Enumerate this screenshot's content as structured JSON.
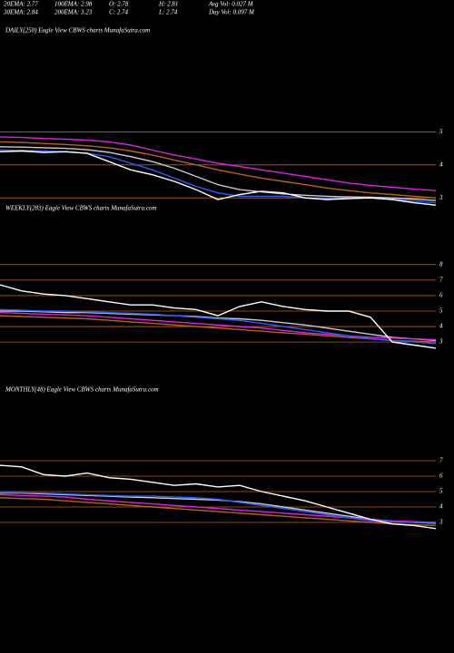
{
  "header": {
    "row1": [
      "20EMA: 2.77",
      "100EMA: 2.98",
      "O: 2.78",
      "H: 2.81",
      "Avg Vol: 0.027 M"
    ],
    "row2": [
      "30EMA: 2.84",
      "200EMA: 3.23",
      "C: 2.74",
      "L: 2.74",
      "Day Vol: 0.097 M"
    ]
  },
  "chart_data": [
    {
      "type": "line",
      "title": "DAILY(250) Eagle  View  CBWS charts MunafaSutra.com",
      "categories": [
        null,
        null,
        null,
        null,
        null,
        null,
        null,
        null,
        null,
        null,
        null,
        null,
        null,
        null,
        null,
        null,
        null,
        null,
        null,
        null,
        null
      ],
      "ylim": [
        2.4,
        5.15
      ],
      "yticks": [
        5,
        4,
        3
      ],
      "grid": true,
      "grid_color": "#b8621b",
      "series": [
        {
          "color": "#b8621b",
          "values": [
            4.7,
            4.68,
            4.65,
            4.62,
            4.58,
            4.52,
            4.42,
            4.3,
            4.15,
            4.0,
            3.85,
            3.72,
            3.6,
            3.5,
            3.4,
            3.3,
            3.22,
            3.15,
            3.1,
            3.05,
            3.0
          ]
        },
        {
          "color": "#cccccc",
          "values": [
            4.55,
            4.54,
            4.52,
            4.5,
            4.46,
            4.38,
            4.25,
            4.1,
            3.9,
            3.65,
            3.4,
            3.25,
            3.18,
            3.12,
            3.08,
            3.05,
            3.03,
            3.02,
            3.0,
            2.96,
            2.92
          ]
        },
        {
          "color": "#e020e0",
          "values": [
            4.85,
            4.83,
            4.8,
            4.78,
            4.75,
            4.7,
            4.6,
            4.45,
            4.3,
            4.18,
            4.05,
            3.95,
            3.85,
            3.75,
            3.65,
            3.55,
            3.45,
            3.38,
            3.32,
            3.27,
            3.22
          ]
        },
        {
          "color": "#2a5cff",
          "values": [
            4.45,
            4.44,
            4.42,
            4.4,
            4.35,
            4.25,
            4.05,
            3.85,
            3.6,
            3.35,
            3.15,
            3.05,
            3.05,
            3.05,
            3.0,
            2.98,
            2.98,
            3.0,
            2.96,
            2.9,
            2.85
          ]
        },
        {
          "color": "#ffffff",
          "values": [
            4.4,
            4.42,
            4.38,
            4.4,
            4.35,
            4.1,
            3.85,
            3.7,
            3.5,
            3.25,
            2.95,
            3.1,
            3.2,
            3.15,
            3.0,
            2.95,
            2.98,
            3.0,
            2.95,
            2.85,
            2.78
          ]
        }
      ]
    },
    {
      "type": "line",
      "title": "WEEKLY(283) Eagle  View  CBWS charts MunafaSutra.com",
      "categories": [
        null,
        null,
        null,
        null,
        null,
        null,
        null,
        null,
        null,
        null,
        null,
        null,
        null,
        null,
        null,
        null,
        null,
        null,
        null,
        null,
        null
      ],
      "ylim": [
        1.95,
        8.4
      ],
      "yticks": [
        8,
        7,
        6,
        5,
        4,
        3
      ],
      "grid": true,
      "grid_color": "#b8621b",
      "series": [
        {
          "color": "#b8621b",
          "values": [
            4.7,
            4.65,
            4.6,
            4.55,
            4.5,
            4.4,
            4.3,
            4.2,
            4.1,
            4.0,
            3.9,
            3.8,
            3.7,
            3.6,
            3.5,
            3.4,
            3.3,
            3.2,
            3.1,
            3.05,
            3.0
          ]
        },
        {
          "color": "#cccccc",
          "values": [
            5.0,
            5.0,
            4.95,
            4.9,
            4.9,
            4.85,
            4.8,
            4.75,
            4.7,
            4.65,
            4.55,
            4.5,
            4.4,
            4.25,
            4.1,
            3.9,
            3.7,
            3.5,
            3.3,
            3.2,
            3.1
          ]
        },
        {
          "color": "#e020e0",
          "values": [
            4.9,
            4.85,
            4.8,
            4.75,
            4.7,
            4.6,
            4.5,
            4.4,
            4.3,
            4.2,
            4.1,
            4.0,
            3.9,
            3.75,
            3.6,
            3.5,
            3.4,
            3.3,
            3.25,
            3.2,
            3.15
          ]
        },
        {
          "color": "#2a5cff",
          "values": [
            5.1,
            5.05,
            5.0,
            5.0,
            4.95,
            4.9,
            4.85,
            4.8,
            4.7,
            4.6,
            4.5,
            4.4,
            4.2,
            4.0,
            3.8,
            3.6,
            3.4,
            3.2,
            3.1,
            3.0,
            2.9
          ]
        },
        {
          "color": "#ffffff",
          "values": [
            6.7,
            6.3,
            6.1,
            6.0,
            5.8,
            5.6,
            5.4,
            5.4,
            5.2,
            5.1,
            4.7,
            5.3,
            5.6,
            5.3,
            5.1,
            5.0,
            5.0,
            4.6,
            3.0,
            2.8,
            2.6
          ]
        }
      ]
    },
    {
      "type": "line",
      "title": "MONTHLY(48) Eagle  View  CBWS charts MunafaSutra.com",
      "categories": [
        null,
        null,
        null,
        null,
        null,
        null,
        null,
        null,
        null,
        null,
        null,
        null,
        null,
        null,
        null,
        null,
        null,
        null,
        null,
        null,
        null
      ],
      "ylim": [
        1.59,
        7.47
      ],
      "yticks": [
        7,
        6,
        5,
        4,
        3
      ],
      "grid": true,
      "grid_color": "#b8621b",
      "series": [
        {
          "color": "#b8621b",
          "values": [
            4.6,
            4.55,
            4.5,
            4.4,
            4.3,
            4.2,
            4.1,
            4.0,
            3.9,
            3.8,
            3.7,
            3.6,
            3.5,
            3.4,
            3.3,
            3.2,
            3.1,
            3.0,
            2.9,
            2.85,
            2.8
          ]
        },
        {
          "color": "#cccccc",
          "values": [
            4.9,
            4.9,
            4.85,
            4.8,
            4.75,
            4.7,
            4.65,
            4.6,
            4.55,
            4.5,
            4.45,
            4.35,
            4.2,
            4.0,
            3.8,
            3.6,
            3.4,
            3.2,
            3.05,
            3.0,
            2.95
          ]
        },
        {
          "color": "#e020e0",
          "values": [
            4.8,
            4.75,
            4.7,
            4.65,
            4.5,
            4.4,
            4.3,
            4.2,
            4.1,
            4.0,
            3.9,
            3.8,
            3.7,
            3.6,
            3.5,
            3.4,
            3.3,
            3.2,
            3.1,
            3.05,
            3.0
          ]
        },
        {
          "color": "#2a5cff",
          "values": [
            4.95,
            4.93,
            4.9,
            4.85,
            4.8,
            4.75,
            4.7,
            4.7,
            4.65,
            4.6,
            4.5,
            4.3,
            4.1,
            3.9,
            3.7,
            3.5,
            3.3,
            3.1,
            3.05,
            3.0,
            3.0
          ]
        },
        {
          "color": "#ffffff",
          "values": [
            6.7,
            6.6,
            6.1,
            6.0,
            6.2,
            5.9,
            5.8,
            5.6,
            5.4,
            5.5,
            5.3,
            5.4,
            5.0,
            4.7,
            4.4,
            4.0,
            3.6,
            3.2,
            2.9,
            2.8,
            2.6
          ]
        }
      ]
    }
  ]
}
